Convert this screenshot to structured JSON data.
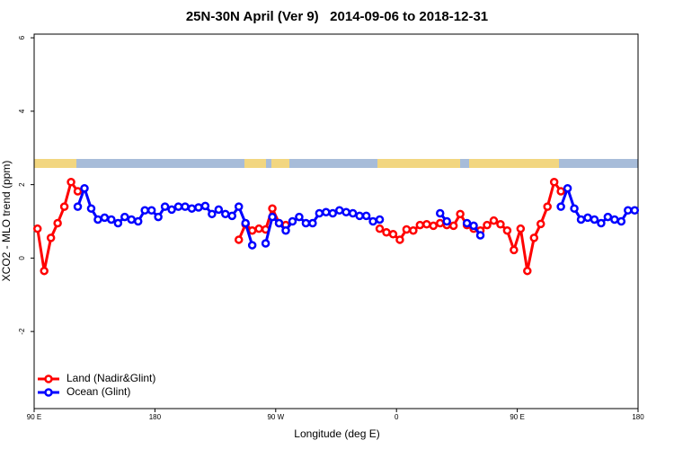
{
  "chart_data": {
    "type": "line",
    "title": "25N-30N April (Ver 9)   2014-09-06 to 2018-12-31",
    "xlabel": "Longitude (deg E)",
    "ylabel": "XCO2 - MLO trend (ppm)",
    "xlim": [
      90,
      540
    ],
    "ylim": [
      -4.1,
      6.1
    ],
    "xticks": [
      {
        "value": 90,
        "label": "90 E"
      },
      180,
      {
        "value": 270,
        "label": "90 W"
      },
      {
        "value": 360,
        "label": "0"
      },
      {
        "value": 450,
        "label": "90 E"
      },
      {
        "value": 540,
        "label": "180"
      }
    ],
    "yticks": [
      -2,
      0,
      2,
      4,
      6
    ],
    "legend": "bottom left",
    "x": [
      92.5,
      97.5,
      102.5,
      107.5,
      112.5,
      117.5,
      122.5,
      127.5,
      132.5,
      137.5,
      142.5,
      147.5,
      152.5,
      157.5,
      162.5,
      167.5,
      172.5,
      177.5,
      182.5,
      187.5,
      192.5,
      197.5,
      202.5,
      207.5,
      212.5,
      217.5,
      222.5,
      227.5,
      232.5,
      237.5,
      242.5,
      247.5,
      252.5,
      257.5,
      262.5,
      267.5,
      272.5,
      277.5,
      282.5,
      287.5,
      292.5,
      297.5,
      302.5,
      307.5,
      312.5,
      317.5,
      322.5,
      327.5,
      332.5,
      337.5,
      342.5,
      347.5,
      352.5,
      357.5,
      362.5,
      367.5,
      372.5,
      377.5,
      382.5,
      387.5,
      392.5,
      397.5,
      402.5,
      407.5,
      412.5,
      417.5,
      422.5,
      427.5,
      432.5,
      437.5,
      442.5,
      447.5,
      452.5,
      457.5,
      462.5,
      467.5,
      472.5,
      477.5,
      482.5,
      487.5,
      492.5,
      497.5,
      502.5,
      507.5,
      512.5,
      517.5,
      522.5,
      527.5,
      532.5,
      537.5
    ],
    "series": [
      {
        "name": "Land (Nadir&Glint)",
        "color": "#ff0000",
        "values": [
          0.8,
          -0.35,
          0.55,
          0.95,
          1.4,
          2.07,
          1.82,
          null,
          null,
          null,
          null,
          null,
          null,
          null,
          null,
          null,
          null,
          null,
          null,
          null,
          null,
          null,
          null,
          null,
          null,
          null,
          null,
          null,
          null,
          null,
          0.5,
          0.92,
          0.75,
          0.8,
          0.78,
          1.35,
          0.95,
          0.9,
          null,
          null,
          null,
          null,
          null,
          null,
          null,
          null,
          null,
          null,
          null,
          null,
          null,
          0.8,
          0.7,
          0.65,
          0.5,
          0.78,
          0.75,
          0.9,
          0.92,
          0.88,
          0.95,
          0.9,
          0.88,
          1.2,
          0.9,
          0.8,
          0.75,
          0.9,
          1.02,
          0.92,
          0.75,
          0.22,
          0.8,
          -0.35,
          0.55,
          0.93,
          1.4,
          2.07,
          1.82,
          null,
          null,
          null,
          null,
          null,
          null,
          null,
          null,
          null,
          null,
          null
        ]
      },
      {
        "name": "Ocean (Glint)",
        "color": "#0000ff",
        "values": [
          null,
          null,
          null,
          null,
          null,
          null,
          1.4,
          1.9,
          1.35,
          1.05,
          1.1,
          1.05,
          0.95,
          1.12,
          1.05,
          1.0,
          1.3,
          1.3,
          1.12,
          1.4,
          1.32,
          1.4,
          1.4,
          1.35,
          1.38,
          1.42,
          1.2,
          1.32,
          1.2,
          1.15,
          1.4,
          0.95,
          0.35,
          null,
          0.4,
          1.12,
          0.95,
          0.75,
          1.0,
          1.12,
          0.95,
          0.95,
          1.22,
          1.25,
          1.22,
          1.3,
          1.25,
          1.22,
          1.15,
          1.15,
          1.0,
          1.05,
          null,
          null,
          null,
          null,
          null,
          null,
          null,
          null,
          1.22,
          1.0,
          null,
          null,
          0.95,
          0.88,
          0.62,
          null,
          null,
          null,
          null,
          null,
          null,
          null,
          null,
          null,
          null,
          null,
          1.4,
          1.9,
          1.35,
          1.05,
          1.1,
          1.05,
          0.95,
          1.12,
          1.05,
          1.0,
          1.3,
          1.3
        ]
      }
    ]
  }
}
